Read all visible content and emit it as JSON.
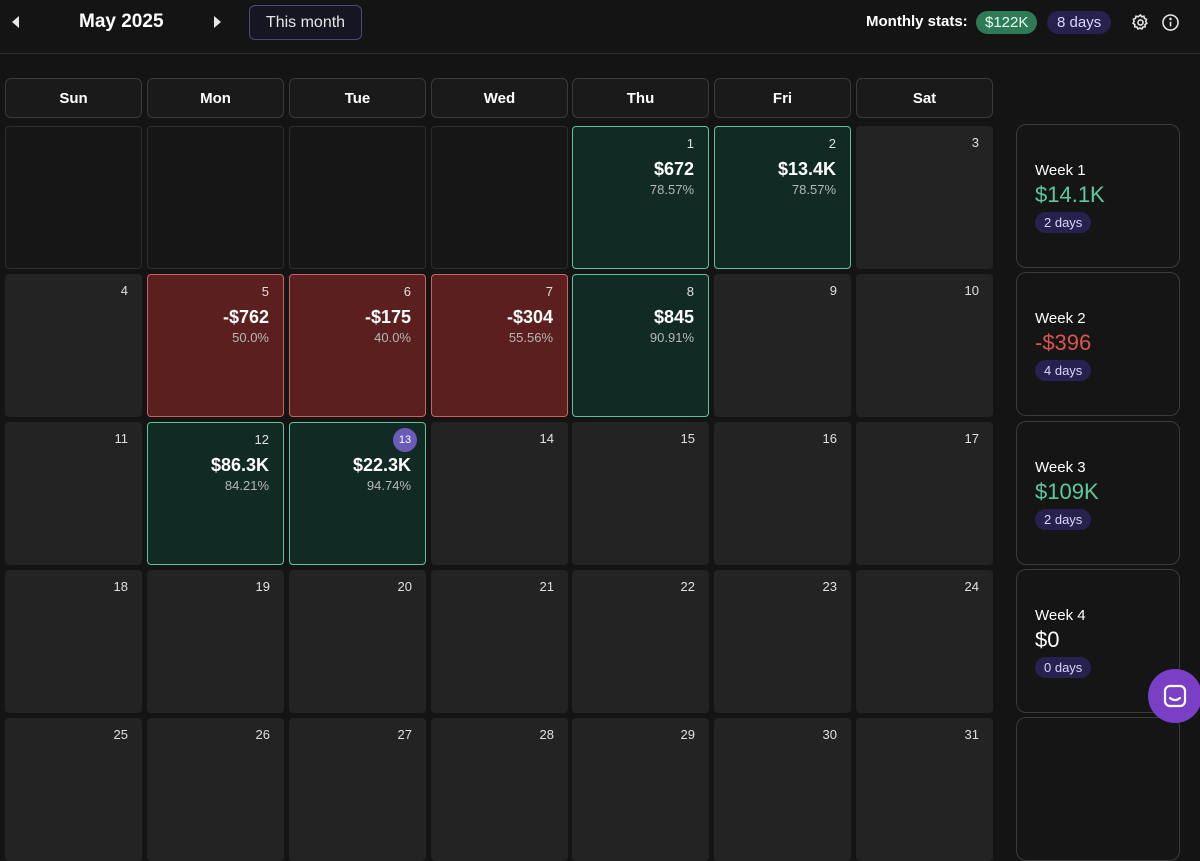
{
  "header": {
    "month_title": "May 2025",
    "this_month_label": "This month",
    "stats_label": "Monthly stats:",
    "stats_pnl": "$122K",
    "stats_days": "8 days",
    "icons": [
      "chevron-left-icon",
      "chevron-right-icon",
      "gear-icon",
      "info-icon"
    ]
  },
  "weekdays": [
    "Sun",
    "Mon",
    "Tue",
    "Wed",
    "Thu",
    "Fri",
    "Sat"
  ],
  "weeks": [
    {
      "days": [
        {
          "num": "",
          "state": "empty"
        },
        {
          "num": "",
          "state": "empty"
        },
        {
          "num": "",
          "state": "empty"
        },
        {
          "num": "",
          "state": "empty"
        },
        {
          "num": "1",
          "state": "pos",
          "pnl": "$672",
          "pct": "78.57%"
        },
        {
          "num": "2",
          "state": "pos",
          "pnl": "$13.4K",
          "pct": "78.57%"
        },
        {
          "num": "3",
          "state": "none"
        }
      ]
    },
    {
      "days": [
        {
          "num": "4",
          "state": "none"
        },
        {
          "num": "5",
          "state": "neg",
          "pnl": "-$762",
          "pct": "50.0%"
        },
        {
          "num": "6",
          "state": "neg",
          "pnl": "-$175",
          "pct": "40.0%"
        },
        {
          "num": "7",
          "state": "neg",
          "pnl": "-$304",
          "pct": "55.56%"
        },
        {
          "num": "8",
          "state": "pos",
          "pnl": "$845",
          "pct": "90.91%"
        },
        {
          "num": "9",
          "state": "none"
        },
        {
          "num": "10",
          "state": "none"
        }
      ]
    },
    {
      "days": [
        {
          "num": "11",
          "state": "none"
        },
        {
          "num": "12",
          "state": "pos",
          "pnl": "$86.3K",
          "pct": "84.21%"
        },
        {
          "num": "13",
          "state": "pos",
          "pnl": "$22.3K",
          "pct": "94.74%",
          "today": true
        },
        {
          "num": "14",
          "state": "none"
        },
        {
          "num": "15",
          "state": "none"
        },
        {
          "num": "16",
          "state": "none"
        },
        {
          "num": "17",
          "state": "none"
        }
      ]
    },
    {
      "days": [
        {
          "num": "18",
          "state": "none"
        },
        {
          "num": "19",
          "state": "none"
        },
        {
          "num": "20",
          "state": "none"
        },
        {
          "num": "21",
          "state": "none"
        },
        {
          "num": "22",
          "state": "none"
        },
        {
          "num": "23",
          "state": "none"
        },
        {
          "num": "24",
          "state": "none"
        }
      ]
    },
    {
      "days": [
        {
          "num": "25",
          "state": "none"
        },
        {
          "num": "26",
          "state": "none"
        },
        {
          "num": "27",
          "state": "none"
        },
        {
          "num": "28",
          "state": "none"
        },
        {
          "num": "29",
          "state": "none"
        },
        {
          "num": "30",
          "state": "none"
        },
        {
          "num": "31",
          "state": "none"
        }
      ]
    }
  ],
  "week_summaries": [
    {
      "label": "Week 1",
      "value": "$14.1K",
      "tone": "pos",
      "days": "2 days"
    },
    {
      "label": "Week 2",
      "value": "-$396",
      "tone": "neg",
      "days": "4 days"
    },
    {
      "label": "Week 3",
      "value": "$109K",
      "tone": "pos",
      "days": "2 days"
    },
    {
      "label": "Week 4",
      "value": "$0",
      "tone": "zero",
      "days": "0 days"
    },
    {
      "label": "",
      "value": "",
      "tone": "zero",
      "days": ""
    }
  ],
  "colors": {
    "positive_bg": "#112a24",
    "positive_border": "#5fc199",
    "negative_bg": "#5a1f1e",
    "negative_border": "#c56460",
    "positive_text": "#5dc99c",
    "negative_text": "#d8564f",
    "today_badge": "#6b5ab8",
    "chat_button": "#7a3fc4"
  },
  "chat_icon": "chat-icon"
}
